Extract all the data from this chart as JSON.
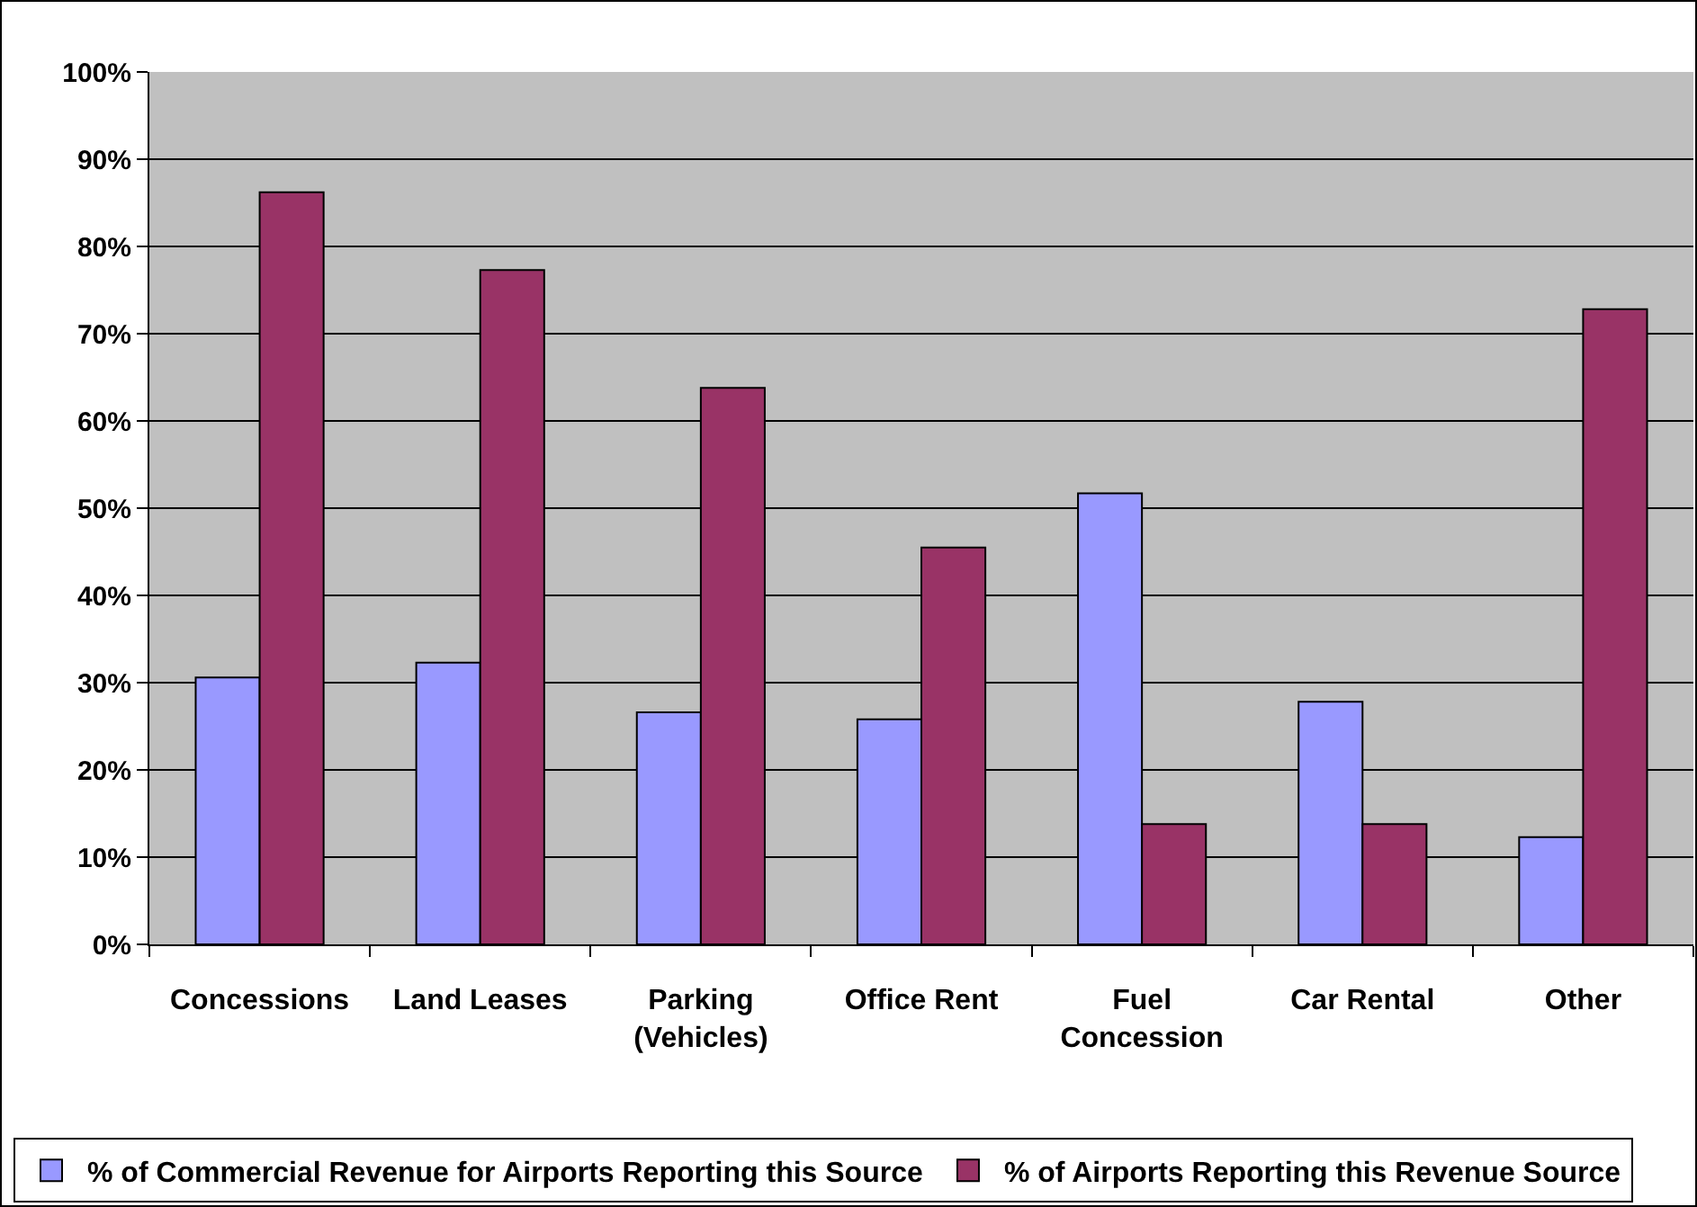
{
  "chart_data": {
    "type": "bar",
    "categories": [
      "Concessions",
      "Land Leases",
      "Parking (Vehicles)",
      "Office Rent",
      "Fuel Concession",
      "Car Rental",
      "Other"
    ],
    "series": [
      {
        "name": "% of Commercial Revenue for Airports Reporting this Source",
        "color": "#9999ff",
        "values": [
          30.6,
          32.3,
          26.6,
          25.8,
          51.7,
          27.8,
          12.3
        ]
      },
      {
        "name": "% of Airports Reporting this Revenue Source",
        "color": "#993366",
        "values": [
          86.2,
          77.3,
          63.8,
          45.5,
          13.8,
          13.8,
          72.8
        ]
      }
    ],
    "ylim": [
      0,
      100
    ],
    "yticks": [
      {
        "value": 0,
        "label": "0%"
      },
      {
        "value": 10,
        "label": "10%"
      },
      {
        "value": 20,
        "label": "20%"
      },
      {
        "value": 30,
        "label": "30%"
      },
      {
        "value": 40,
        "label": "40%"
      },
      {
        "value": 50,
        "label": "50%"
      },
      {
        "value": 60,
        "label": "60%"
      },
      {
        "value": 70,
        "label": "70%"
      },
      {
        "value": 80,
        "label": "80%"
      },
      {
        "value": 90,
        "label": "90%"
      },
      {
        "value": 100,
        "label": "100%"
      }
    ],
    "grid": "y",
    "legend": "bottom"
  }
}
